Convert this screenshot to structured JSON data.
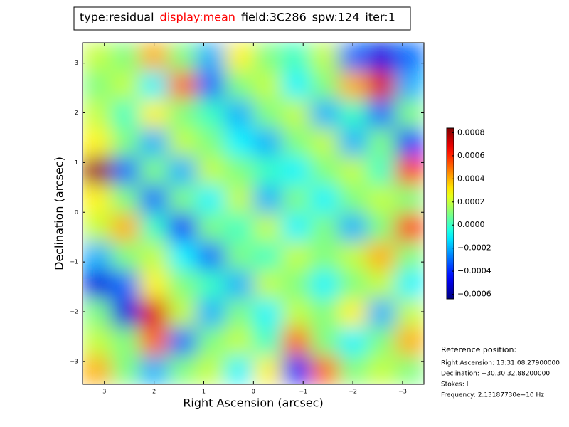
{
  "chart_data": {
    "type": "heatmap",
    "title_parts": [
      {
        "text": "type:residual",
        "color": "#000000"
      },
      {
        "text": "display:mean",
        "color": "#ff0000"
      },
      {
        "text": "field:3C286",
        "color": "#000000"
      },
      {
        "text": "spw:124",
        "color": "#000000"
      },
      {
        "text": "iter:1",
        "color": "#000000"
      }
    ],
    "x_label": "Right Ascension (arcsec)",
    "y_label": "Declination (arcsec)",
    "xlim": [
      3.44,
      -3.43
    ],
    "ylim": [
      -3.46,
      3.41
    ],
    "xticks": [
      3,
      2,
      1,
      0,
      {
        "value": -1,
        "label": "−1"
      },
      {
        "value": -2,
        "label": "−2"
      },
      {
        "value": -3,
        "label": "−3"
      }
    ],
    "yticks": [
      3,
      2,
      1,
      0,
      {
        "value": -1,
        "label": "−1"
      },
      {
        "value": -2,
        "label": "−2"
      },
      {
        "value": -3,
        "label": "−3"
      }
    ],
    "colormap": "jet",
    "clim": [
      -0.00064,
      0.00084
    ],
    "cticks": [
      {
        "value": 0.0008,
        "label": "0.0008"
      },
      {
        "value": 0.0006,
        "label": "0.0006"
      },
      {
        "value": 0.0004,
        "label": "0.0004"
      },
      {
        "value": 0.0002,
        "label": "0.0002"
      },
      {
        "value": 0,
        "label": "0.0000"
      },
      {
        "value": -0.0002,
        "label": "−0.0002"
      },
      {
        "value": -0.0004,
        "label": "−0.0004"
      },
      {
        "value": -0.0006,
        "label": "−0.0006"
      }
    ],
    "z": [
      [
        0.0002,
        0.0001,
        0.0004,
        0.0001,
        -0.0002,
        0.0003,
        0.0001,
        0.0,
        0.0002,
        -0.0003,
        -0.0005,
        -0.0003
      ],
      [
        0.0001,
        0.0002,
        -0.0001,
        0.0005,
        -0.0003,
        0.0001,
        0.0002,
        -0.0001,
        0.0001,
        0.0004,
        0.0007,
        -0.0002
      ],
      [
        0.0002,
        0.0,
        0.0003,
        0.0001,
        0.0,
        -0.0002,
        0.0001,
        0.0002,
        -0.0002,
        0.0,
        -0.0003,
        0.0001
      ],
      [
        0.0003,
        0.0001,
        -0.0002,
        0.0002,
        0.0001,
        -0.0001,
        -0.0002,
        0.0001,
        0.0002,
        -0.0002,
        0.0001,
        -0.0004
      ],
      [
        0.0008,
        -0.0003,
        0.0001,
        -0.0002,
        0.0002,
        0.0001,
        0.0,
        -0.0001,
        0.0001,
        0.0002,
        0.0,
        0.0006
      ],
      [
        0.0003,
        0.0001,
        -0.0003,
        0.0001,
        -0.0001,
        0.0002,
        -0.0002,
        0.0001,
        -0.0001,
        0.0001,
        0.0002,
        0.0001
      ],
      [
        0.0002,
        0.0004,
        0.0,
        -0.0004,
        0.0001,
        0.0,
        0.0002,
        -0.0001,
        0.0001,
        -0.0002,
        0.0001,
        0.0006
      ],
      [
        -0.0002,
        0.0001,
        0.0002,
        -0.0001,
        -0.0003,
        0.0001,
        0.0,
        0.0002,
        0.0001,
        0.0002,
        0.0004,
        0.0001
      ],
      [
        -0.0005,
        -0.0003,
        0.0003,
        0.0001,
        0.0,
        -0.0002,
        0.0002,
        0.0001,
        -0.0001,
        0.0001,
        0.0002,
        -0.0001
      ],
      [
        0.0001,
        -0.0005,
        0.0007,
        0.0002,
        -0.0002,
        0.0001,
        -0.0001,
        0.0002,
        0.0001,
        0.0003,
        -0.0002,
        0.0002
      ],
      [
        0.0002,
        0.0001,
        0.0005,
        -0.0003,
        0.0001,
        0.0002,
        0.0,
        0.0005,
        0.0001,
        -0.0001,
        0.0001,
        0.0004
      ],
      [
        0.0004,
        0.0001,
        -0.0002,
        0.0001,
        0.0002,
        -0.0001,
        0.0003,
        -0.0004,
        0.0005,
        0.0001,
        0.0002,
        0.0001
      ]
    ],
    "reference": {
      "title": "Reference position:",
      "lines": [
        "Right Ascension: 13:31:08.27900000",
        "Declination: +30.30.32.88200000",
        "Stokes: I",
        "Frequency: 2.13187730e+10 Hz"
      ]
    }
  }
}
